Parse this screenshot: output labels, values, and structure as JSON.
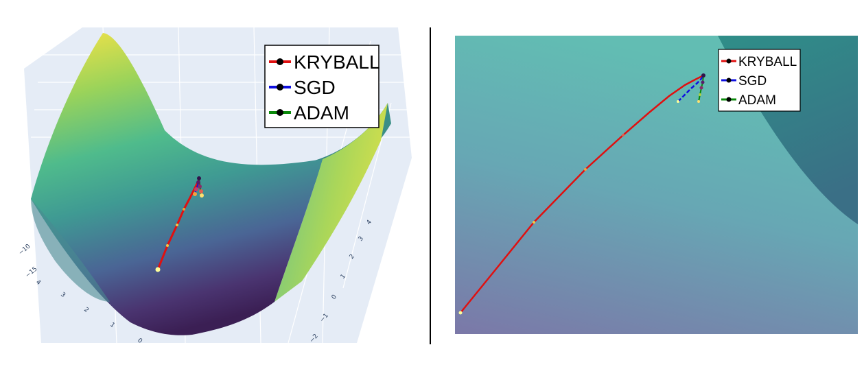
{
  "left_chart": {
    "legend": [
      {
        "name": "KRYBALL",
        "color": "#e01010"
      },
      {
        "name": "SGD",
        "color": "#1010e0"
      },
      {
        "name": "ADAM",
        "color": "#0a8a0a"
      }
    ],
    "axis_ticks_left": [
      "−15",
      "−10"
    ],
    "axis_ticks_front": [
      "4",
      "3",
      "2",
      "1",
      "0"
    ],
    "axis_ticks_right": [
      "4",
      "3",
      "2",
      "1",
      "0",
      "−1",
      "−2"
    ],
    "colorscale": "viridis",
    "chart_data": {
      "type": "line",
      "description_series": [
        "KRYBALL",
        "SGD",
        "ADAM"
      ]
    }
  },
  "right_chart": {
    "legend": [
      {
        "name": "KRYBALL",
        "color": "#e01010"
      },
      {
        "name": "SGD",
        "color": "#1010e0"
      },
      {
        "name": "ADAM",
        "color": "#0a8a0a"
      }
    ]
  },
  "chart_data": [
    {
      "type": "line",
      "series": [
        {
          "name": "KRYBALL",
          "color": "#e01010"
        },
        {
          "name": "SGD",
          "color": "#1010e0"
        },
        {
          "name": "ADAM",
          "color": "#0a8a0a"
        }
      ],
      "x_ticks": [
        "4",
        "3",
        "2",
        "1",
        "0"
      ],
      "y_ticks": [
        "4",
        "3",
        "2",
        "1",
        "0",
        "−1",
        "−2"
      ],
      "z_ticks": [
        "−15",
        "−10"
      ],
      "surface_colorscale": "viridis",
      "grid": true,
      "legend_position": "top-right"
    },
    {
      "type": "line",
      "series": [
        {
          "name": "KRYBALL",
          "color": "#e01010"
        },
        {
          "name": "SGD",
          "color": "#1010e0"
        },
        {
          "name": "ADAM",
          "color": "#0a8a0a"
        }
      ],
      "grid": false,
      "legend_position": "top-right"
    }
  ]
}
